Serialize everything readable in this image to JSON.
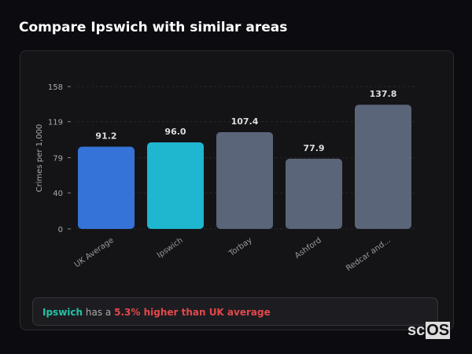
{
  "title": "Compare Ipswich with similar areas",
  "chart_data": {
    "type": "bar",
    "categories": [
      "UK Average",
      "Ipswich",
      "Torbay",
      "Ashford",
      "Redcar and..."
    ],
    "values": [
      91.2,
      96.0,
      107.4,
      77.9,
      137.8
    ],
    "value_labels": [
      "91.2",
      "96.0",
      "107.4",
      "77.9",
      "137.8"
    ],
    "colors": [
      "#3673d8",
      "#1fb6cf",
      "#5a6579",
      "#5a6579",
      "#5a6579"
    ],
    "ylabel": "Crimes per 1,000",
    "yticks": [
      0,
      40,
      79,
      119,
      158
    ],
    "ylim": [
      0,
      158
    ],
    "grid": true
  },
  "note": {
    "area": "Ipswich",
    "mid": "has a",
    "stat": "5.3% higher than UK average"
  },
  "logo": {
    "a": "sc",
    "b": "OS"
  }
}
